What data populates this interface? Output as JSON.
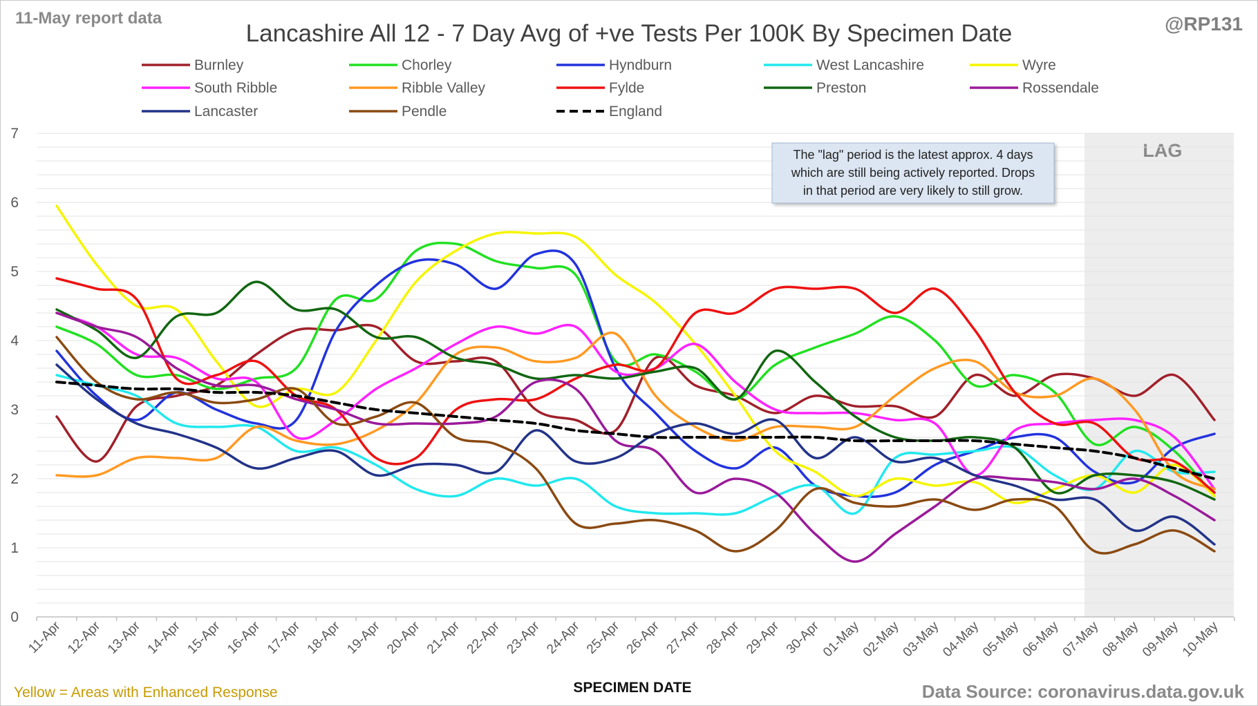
{
  "header": {
    "report": "11-May report data",
    "title": "Lancashire All 12 - 7 Day Avg of +ve Tests Per 100K By Specimen Date",
    "handle": "@RP131"
  },
  "footer": {
    "note": "Yellow = Areas with Enhanced Response",
    "source": "Data Source: coronavirus.data.gov.uk"
  },
  "annotation": {
    "lines": [
      "The \"lag\" period is the latest approx. 4 days",
      "which are still being actively reported.  Drops",
      "in that period are very likely to still grow."
    ],
    "lag_label": "LAG"
  },
  "chart_data": {
    "type": "line",
    "title": "Lancashire All 12 - 7 Day Avg of +ve Tests Per 100K By Specimen Date",
    "xlabel": "SPECIMEN DATE",
    "ylabel": "",
    "ylim": [
      0,
      7
    ],
    "yticks": [
      "0",
      "1",
      "2",
      "3",
      "4",
      "5",
      "6",
      "7"
    ],
    "grid": true,
    "legend_position": "top",
    "lag_start_index": 26,
    "x": [
      "11-Apr",
      "12-Apr",
      "13-Apr",
      "14-Apr",
      "15-Apr",
      "16-Apr",
      "17-Apr",
      "18-Apr",
      "19-Apr",
      "20-Apr",
      "21-Apr",
      "22-Apr",
      "23-Apr",
      "24-Apr",
      "25-Apr",
      "26-Apr",
      "27-Apr",
      "28-Apr",
      "29-Apr",
      "30-Apr",
      "01-May",
      "02-May",
      "03-May",
      "04-May",
      "05-May",
      "06-May",
      "07-May",
      "08-May",
      "09-May",
      "10-May"
    ],
    "series": [
      {
        "name": "Burnley",
        "color": "#a0202a",
        "dash": false,
        "values": [
          2.9,
          2.25,
          3.05,
          3.2,
          3.35,
          3.8,
          4.15,
          4.15,
          4.2,
          3.7,
          3.7,
          3.7,
          3.0,
          2.85,
          2.7,
          3.75,
          3.35,
          3.2,
          2.95,
          3.2,
          3.05,
          3.05,
          2.9,
          3.5,
          3.2,
          3.5,
          3.45,
          3.2,
          3.5,
          2.85
        ]
      },
      {
        "name": "Chorley",
        "color": "#22e022",
        "dash": false,
        "values": [
          4.2,
          3.95,
          3.5,
          3.5,
          3.3,
          3.45,
          3.6,
          4.6,
          4.6,
          5.3,
          5.4,
          5.15,
          5.05,
          4.95,
          3.7,
          3.8,
          3.55,
          3.15,
          3.65,
          3.9,
          4.1,
          4.35,
          4.0,
          3.35,
          3.5,
          3.25,
          2.5,
          2.75,
          2.4,
          1.75
        ]
      },
      {
        "name": "Hyndburn",
        "color": "#2233dd",
        "dash": false,
        "values": [
          3.85,
          3.2,
          2.85,
          3.25,
          3.0,
          2.8,
          2.85,
          4.15,
          4.8,
          5.15,
          5.1,
          4.75,
          5.25,
          5.1,
          3.6,
          2.95,
          2.4,
          2.15,
          2.45,
          1.9,
          1.75,
          1.8,
          2.2,
          2.4,
          2.6,
          2.6,
          2.1,
          1.95,
          2.45,
          2.65
        ]
      },
      {
        "name": "West Lancashire",
        "color": "#22e8ee",
        "dash": false,
        "values": [
          3.5,
          3.35,
          3.2,
          2.8,
          2.75,
          2.75,
          2.4,
          2.45,
          2.2,
          1.85,
          1.75,
          2.0,
          1.9,
          2.0,
          1.6,
          1.5,
          1.5,
          1.5,
          1.75,
          1.9,
          1.5,
          2.3,
          2.35,
          2.4,
          2.45,
          2.05,
          1.85,
          2.4,
          2.1,
          2.1
        ]
      },
      {
        "name": "Wyre",
        "color": "#f5f500",
        "dash": false,
        "values": [
          5.95,
          5.1,
          4.5,
          4.45,
          3.7,
          3.05,
          3.3,
          3.25,
          4.0,
          4.85,
          5.3,
          5.55,
          5.55,
          5.5,
          4.95,
          4.55,
          3.95,
          3.2,
          2.4,
          2.1,
          1.75,
          2.0,
          1.9,
          1.95,
          1.65,
          1.85,
          2.05,
          1.8,
          2.2,
          1.75
        ]
      },
      {
        "name": "South Ribble",
        "color": "#ff22ff",
        "dash": false,
        "values": [
          4.4,
          4.2,
          3.8,
          3.75,
          3.45,
          3.4,
          2.6,
          2.85,
          3.3,
          3.6,
          3.95,
          4.2,
          4.1,
          4.2,
          3.55,
          3.6,
          3.95,
          3.4,
          3.0,
          2.95,
          2.95,
          2.85,
          2.8,
          2.05,
          2.7,
          2.8,
          2.85,
          2.85,
          2.6,
          1.85
        ]
      },
      {
        "name": "Ribble Valley",
        "color": "#ff9922",
        "dash": false,
        "values": [
          2.05,
          2.05,
          2.3,
          2.3,
          2.3,
          2.75,
          2.55,
          2.5,
          2.7,
          3.1,
          3.8,
          3.9,
          3.7,
          3.75,
          4.1,
          3.2,
          2.75,
          2.55,
          2.75,
          2.75,
          2.75,
          3.2,
          3.6,
          3.7,
          3.25,
          3.2,
          3.45,
          3.0,
          2.1,
          1.85
        ]
      },
      {
        "name": "Fylde",
        "color": "#ee1111",
        "dash": false,
        "values": [
          4.9,
          4.75,
          4.6,
          3.45,
          3.5,
          3.7,
          3.2,
          3.0,
          2.3,
          2.3,
          3.0,
          3.15,
          3.15,
          3.45,
          3.65,
          3.6,
          4.4,
          4.4,
          4.75,
          4.75,
          4.75,
          4.4,
          4.75,
          4.15,
          3.25,
          2.8,
          2.8,
          2.3,
          2.25,
          1.8
        ]
      },
      {
        "name": "Preston",
        "color": "#116611",
        "dash": false,
        "values": [
          4.45,
          4.15,
          3.75,
          4.35,
          4.4,
          4.85,
          4.45,
          4.45,
          4.05,
          4.05,
          3.75,
          3.65,
          3.45,
          3.5,
          3.45,
          3.55,
          3.6,
          3.15,
          3.85,
          3.4,
          2.9,
          2.6,
          2.55,
          2.6,
          2.45,
          1.8,
          2.05,
          2.05,
          1.95,
          1.7
        ]
      },
      {
        "name": "Rossendale",
        "color": "#9a1a9a",
        "dash": false,
        "values": [
          4.4,
          4.2,
          4.05,
          3.6,
          3.35,
          3.35,
          3.15,
          3.0,
          2.8,
          2.8,
          2.8,
          2.9,
          3.4,
          3.3,
          2.55,
          2.4,
          1.8,
          2.0,
          1.8,
          1.2,
          0.8,
          1.2,
          1.6,
          2.0,
          2.0,
          1.95,
          1.85,
          2.0,
          1.75,
          1.4
        ]
      },
      {
        "name": "Lancaster",
        "color": "#223388",
        "dash": false,
        "values": [
          3.65,
          3.15,
          2.8,
          2.65,
          2.45,
          2.15,
          2.3,
          2.4,
          2.05,
          2.2,
          2.2,
          2.1,
          2.7,
          2.25,
          2.3,
          2.65,
          2.8,
          2.65,
          2.85,
          2.3,
          2.6,
          2.25,
          2.3,
          2.05,
          1.9,
          1.7,
          1.7,
          1.25,
          1.45,
          1.05
        ]
      },
      {
        "name": "Pendle",
        "color": "#8a4a12",
        "dash": false,
        "values": [
          4.05,
          3.4,
          3.15,
          3.25,
          3.1,
          3.15,
          3.3,
          2.8,
          2.9,
          3.1,
          2.6,
          2.5,
          2.15,
          1.35,
          1.35,
          1.4,
          1.25,
          0.95,
          1.25,
          1.85,
          1.65,
          1.6,
          1.7,
          1.55,
          1.7,
          1.6,
          0.95,
          1.05,
          1.25,
          0.95
        ]
      },
      {
        "name": "England",
        "color": "#000000",
        "dash": true,
        "values": [
          3.4,
          3.35,
          3.3,
          3.3,
          3.25,
          3.25,
          3.2,
          3.1,
          3.0,
          2.95,
          2.9,
          2.85,
          2.8,
          2.7,
          2.65,
          2.6,
          2.6,
          2.6,
          2.6,
          2.6,
          2.55,
          2.55,
          2.55,
          2.55,
          2.5,
          2.45,
          2.4,
          2.3,
          2.15,
          2.0
        ]
      }
    ]
  }
}
